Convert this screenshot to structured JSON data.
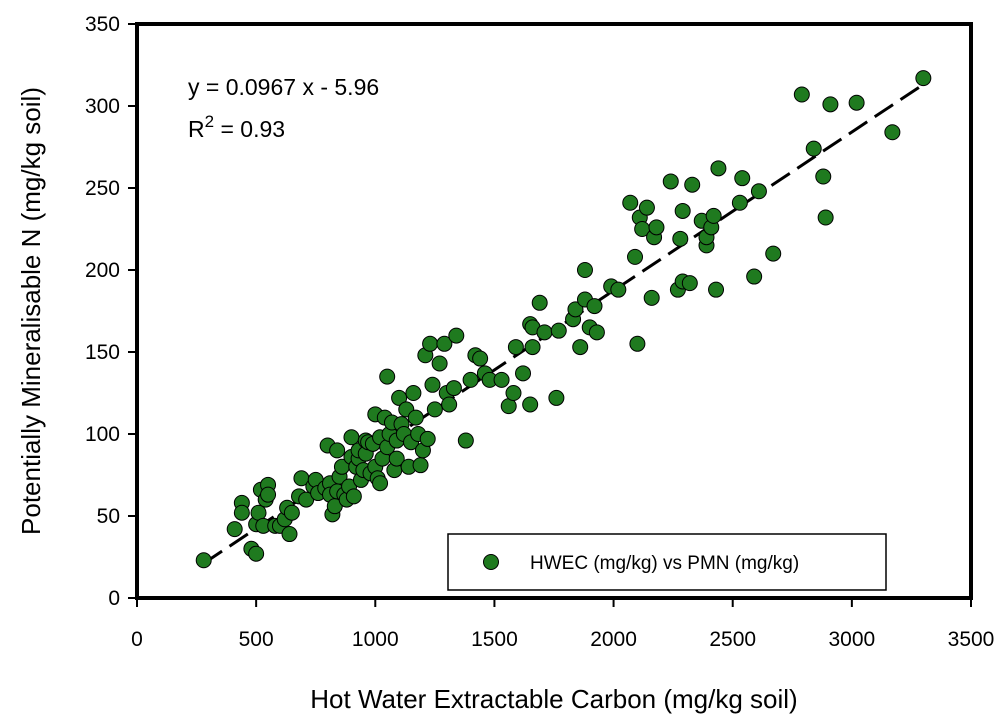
{
  "chart_data": {
    "type": "scatter",
    "xlabel": "Hot Water Extractable Carbon (mg/kg soil)",
    "ylabel": "Potentially Mineralisable N (mg/kg soil)",
    "xlim": [
      0,
      3500
    ],
    "ylim": [
      0,
      350
    ],
    "x_ticks": [
      "0",
      "500",
      "1000",
      "1500",
      "2000",
      "2500",
      "3000",
      "3500"
    ],
    "y_ticks": [
      "0",
      "50",
      "100",
      "150",
      "200",
      "250",
      "300",
      "350"
    ],
    "grid": false,
    "legend_position": "bottom-right",
    "marker_color": "#1f7a1f",
    "marker_edge_color": "#000000",
    "annotations": {
      "equation": "y = 0.0967 x - 5.96",
      "r2_base": "R",
      "r2_sup": "2",
      "r2_rest": " = 0.93"
    },
    "trendline": {
      "slope": 0.0967,
      "intercept": -5.96,
      "x_range": [
        280,
        3300
      ],
      "style": "dashed"
    },
    "series": [
      {
        "name": "HWEC (mg/kg) vs PMN (mg/kg)",
        "points": [
          [
            280,
            23
          ],
          [
            410,
            42
          ],
          [
            440,
            58
          ],
          [
            440,
            52
          ],
          [
            480,
            30
          ],
          [
            500,
            27
          ],
          [
            500,
            45
          ],
          [
            510,
            52
          ],
          [
            520,
            66
          ],
          [
            530,
            44
          ],
          [
            540,
            60
          ],
          [
            550,
            69
          ],
          [
            550,
            63
          ],
          [
            580,
            44
          ],
          [
            600,
            44
          ],
          [
            620,
            48
          ],
          [
            630,
            55
          ],
          [
            640,
            39
          ],
          [
            650,
            52
          ],
          [
            680,
            62
          ],
          [
            690,
            73
          ],
          [
            710,
            60
          ],
          [
            740,
            68
          ],
          [
            750,
            72
          ],
          [
            760,
            64
          ],
          [
            790,
            67
          ],
          [
            800,
            93
          ],
          [
            810,
            70
          ],
          [
            810,
            63
          ],
          [
            820,
            51
          ],
          [
            830,
            56
          ],
          [
            840,
            65
          ],
          [
            840,
            90
          ],
          [
            850,
            74
          ],
          [
            860,
            80
          ],
          [
            870,
            63
          ],
          [
            880,
            60
          ],
          [
            890,
            68
          ],
          [
            900,
            86
          ],
          [
            900,
            98
          ],
          [
            910,
            62
          ],
          [
            920,
            80
          ],
          [
            930,
            85
          ],
          [
            930,
            90
          ],
          [
            940,
            72
          ],
          [
            950,
            78
          ],
          [
            960,
            88
          ],
          [
            960,
            96
          ],
          [
            970,
            95
          ],
          [
            980,
            76
          ],
          [
            990,
            94
          ],
          [
            1000,
            112
          ],
          [
            1000,
            80
          ],
          [
            1010,
            73
          ],
          [
            1020,
            70
          ],
          [
            1020,
            98
          ],
          [
            1030,
            85
          ],
          [
            1040,
            110
          ],
          [
            1050,
            92
          ],
          [
            1050,
            135
          ],
          [
            1060,
            100
          ],
          [
            1070,
            107
          ],
          [
            1080,
            78
          ],
          [
            1090,
            96
          ],
          [
            1090,
            85
          ],
          [
            1100,
            122
          ],
          [
            1110,
            106
          ],
          [
            1120,
            100
          ],
          [
            1130,
            115
          ],
          [
            1140,
            80
          ],
          [
            1150,
            95
          ],
          [
            1160,
            125
          ],
          [
            1170,
            110
          ],
          [
            1180,
            100
          ],
          [
            1190,
            81
          ],
          [
            1200,
            90
          ],
          [
            1210,
            148
          ],
          [
            1220,
            97
          ],
          [
            1230,
            155
          ],
          [
            1240,
            130
          ],
          [
            1250,
            115
          ],
          [
            1270,
            143
          ],
          [
            1290,
            155
          ],
          [
            1300,
            125
          ],
          [
            1310,
            118
          ],
          [
            1330,
            128
          ],
          [
            1340,
            160
          ],
          [
            1380,
            96
          ],
          [
            1400,
            133
          ],
          [
            1420,
            148
          ],
          [
            1440,
            146
          ],
          [
            1460,
            137
          ],
          [
            1480,
            133
          ],
          [
            1530,
            133
          ],
          [
            1560,
            117
          ],
          [
            1580,
            125
          ],
          [
            1590,
            153
          ],
          [
            1620,
            137
          ],
          [
            1650,
            167
          ],
          [
            1650,
            118
          ],
          [
            1660,
            165
          ],
          [
            1660,
            153
          ],
          [
            1690,
            180
          ],
          [
            1710,
            162
          ],
          [
            1760,
            122
          ],
          [
            1770,
            163
          ],
          [
            1830,
            170
          ],
          [
            1840,
            176
          ],
          [
            1860,
            153
          ],
          [
            1880,
            182
          ],
          [
            1880,
            200
          ],
          [
            1900,
            165
          ],
          [
            1920,
            178
          ],
          [
            1930,
            162
          ],
          [
            1990,
            190
          ],
          [
            2020,
            188
          ],
          [
            2070,
            241
          ],
          [
            2090,
            208
          ],
          [
            2100,
            155
          ],
          [
            2110,
            232
          ],
          [
            2120,
            225
          ],
          [
            2140,
            238
          ],
          [
            2160,
            183
          ],
          [
            2170,
            220
          ],
          [
            2180,
            226
          ],
          [
            2240,
            254
          ],
          [
            2270,
            188
          ],
          [
            2280,
            219
          ],
          [
            2290,
            193
          ],
          [
            2290,
            236
          ],
          [
            2320,
            192
          ],
          [
            2330,
            252
          ],
          [
            2370,
            230
          ],
          [
            2390,
            215
          ],
          [
            2390,
            220
          ],
          [
            2410,
            226
          ],
          [
            2420,
            233
          ],
          [
            2430,
            188
          ],
          [
            2440,
            262
          ],
          [
            2530,
            241
          ],
          [
            2540,
            256
          ],
          [
            2590,
            196
          ],
          [
            2610,
            248
          ],
          [
            2670,
            210
          ],
          [
            2790,
            307
          ],
          [
            2840,
            274
          ],
          [
            2880,
            257
          ],
          [
            2890,
            232
          ],
          [
            2910,
            301
          ],
          [
            3020,
            302
          ],
          [
            3170,
            284
          ],
          [
            3300,
            317
          ]
        ]
      }
    ]
  }
}
